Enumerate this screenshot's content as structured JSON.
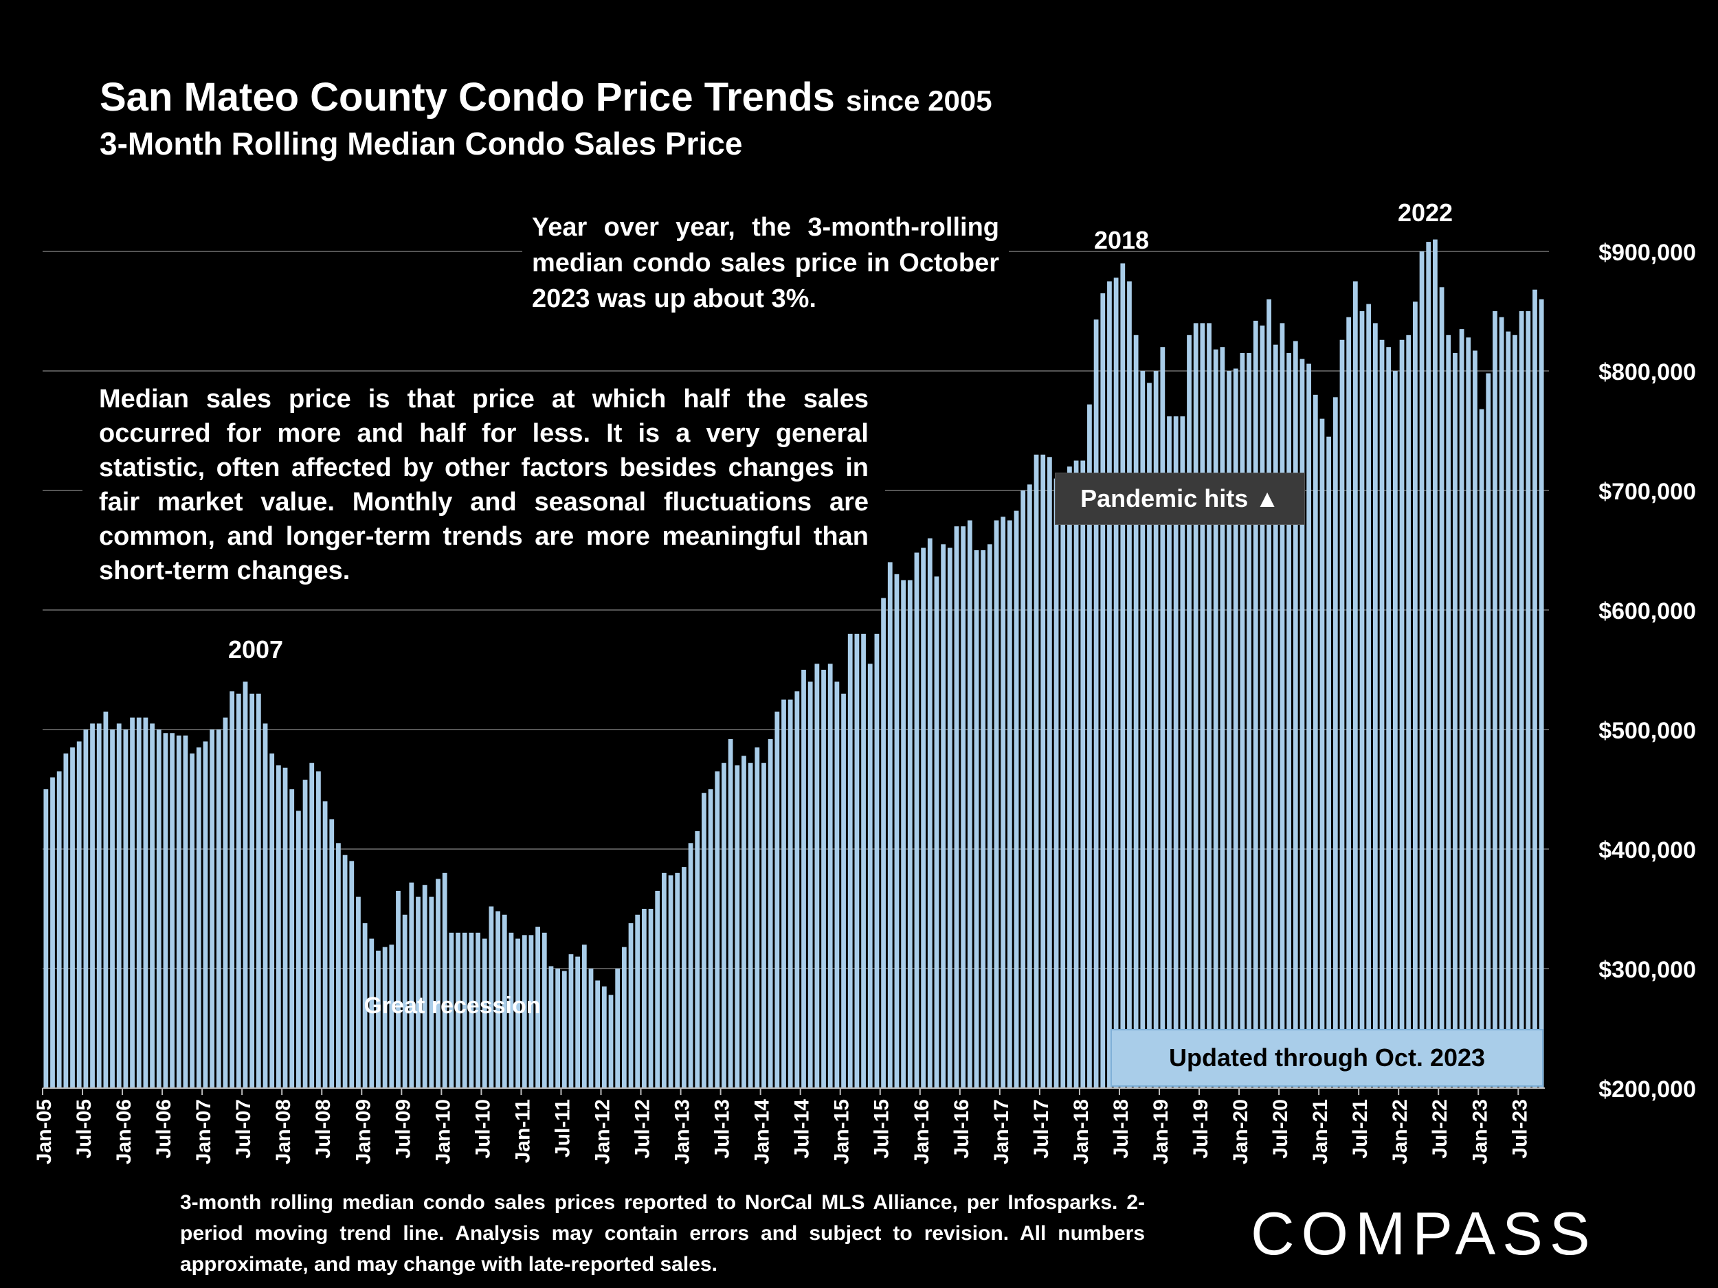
{
  "header": {
    "title": "San Mateo County Condo Price Trends",
    "title_suffix": "since 2005",
    "subtitle": "3-Month Rolling Median Condo Sales Price"
  },
  "annotations": {
    "yoy_note": "Year over year, the 3-month-rolling median condo sales price in October 2023 was up about 3%.",
    "definition_note": "Median sales price is that price at which half the sales occurred for more and half for less. It is a very general statistic, often affected by other factors besides changes in fair market value. Monthly and seasonal fluctuations are common, and longer-term trends are more meaningful than short-term changes.",
    "pandemic": "Pandemic hits ▲",
    "updated": "Updated through Oct. 2023",
    "great_recession": "Great recession",
    "label_2007": "2007",
    "label_2018": "2018",
    "label_2022": "2022"
  },
  "footer": {
    "footnote": "3-month rolling median condo sales prices reported to NorCal MLS Alliance, per Infosparks. 2-period moving trend line. Analysis may contain errors and subject to revision. All numbers approximate, and may change with late-reported sales.",
    "logo": "COMPASS"
  },
  "colors": {
    "bar": "#a9cde9",
    "background": "#000000",
    "gridline": "#555555"
  },
  "chart_data": {
    "type": "bar",
    "start_month": "2005-01",
    "ylim": [
      200000,
      900000
    ],
    "y_ticks": [
      "$200,000",
      "$300,000",
      "$400,000",
      "$500,000",
      "$600,000",
      "$700,000",
      "$800,000",
      "$900,000"
    ],
    "y_tick_values": [
      200000,
      300000,
      400000,
      500000,
      600000,
      700000,
      800000,
      900000
    ],
    "x_tick_labels": [
      "Jan-05",
      "Jul-05",
      "Jan-06",
      "Jul-06",
      "Jan-07",
      "Jul-07",
      "Jan-08",
      "Jul-08",
      "Jan-09",
      "Jul-09",
      "Jan-10",
      "Jul-10",
      "Jan-11",
      "Jul-11",
      "Jan-12",
      "Jul-12",
      "Jan-13",
      "Jul-13",
      "Jan-14",
      "Jul-14",
      "Jan-15",
      "Jul-15",
      "Jan-16",
      "Jul-16",
      "Jan-17",
      "Jul-17",
      "Jan-18",
      "Jul-18",
      "Jan-19",
      "Jul-19",
      "Jan-20",
      "Jul-20",
      "Jan-21",
      "Jul-21",
      "Jan-22",
      "Jul-22",
      "Jan-23",
      "Jul-23"
    ],
    "grid": true,
    "legend": "none",
    "values": [
      450000,
      460000,
      465000,
      480000,
      485000,
      490000,
      500000,
      505000,
      505000,
      515000,
      500000,
      505000,
      500000,
      510000,
      510000,
      510000,
      505000,
      500000,
      497000,
      497000,
      495000,
      495000,
      480000,
      485000,
      490000,
      500000,
      500000,
      510000,
      532000,
      530000,
      540000,
      530000,
      530000,
      505000,
      480000,
      470000,
      468000,
      450000,
      432000,
      458000,
      472000,
      465000,
      440000,
      425000,
      405000,
      395000,
      390000,
      360000,
      338000,
      325000,
      315000,
      318000,
      320000,
      365000,
      345000,
      372000,
      360000,
      370000,
      360000,
      375000,
      380000,
      330000,
      330000,
      330000,
      330000,
      330000,
      325000,
      352000,
      348000,
      345000,
      330000,
      325000,
      328000,
      328000,
      335000,
      330000,
      302000,
      300000,
      298000,
      312000,
      310000,
      320000,
      300000,
      290000,
      285000,
      278000,
      300000,
      318000,
      338000,
      345000,
      350000,
      350000,
      365000,
      380000,
      378000,
      380000,
      385000,
      405000,
      415000,
      447000,
      450000,
      465000,
      472000,
      492000,
      470000,
      478000,
      472000,
      485000,
      472000,
      492000,
      515000,
      525000,
      525000,
      532000,
      550000,
      540000,
      555000,
      550000,
      555000,
      540000,
      530000,
      580000,
      580000,
      580000,
      555000,
      580000,
      610000,
      640000,
      630000,
      625000,
      625000,
      648000,
      652000,
      660000,
      628000,
      655000,
      652000,
      670000,
      670000,
      675000,
      650000,
      650000,
      655000,
      675000,
      678000,
      675000,
      683000,
      700000,
      705000,
      730000,
      730000,
      728000,
      710000,
      700000,
      720000,
      725000,
      725000,
      772000,
      843000,
      865000,
      875000,
      878000,
      890000,
      875000,
      830000,
      800000,
      790000,
      800000,
      820000,
      762000,
      762000,
      762000,
      830000,
      840000,
      840000,
      840000,
      818000,
      820000,
      800000,
      802000,
      815000,
      815000,
      842000,
      838000,
      860000,
      822000,
      840000,
      815000,
      825000,
      810000,
      806000,
      780000,
      760000,
      745000,
      778000,
      826000,
      845000,
      875000,
      850000,
      856000,
      840000,
      826000,
      820000,
      800000,
      826000,
      830000,
      858000,
      900000,
      908000,
      910000,
      870000,
      830000,
      815000,
      835000,
      828000,
      817000,
      768000,
      798000,
      850000,
      845000,
      833000,
      830000,
      850000,
      850000,
      868000,
      860000
    ]
  }
}
